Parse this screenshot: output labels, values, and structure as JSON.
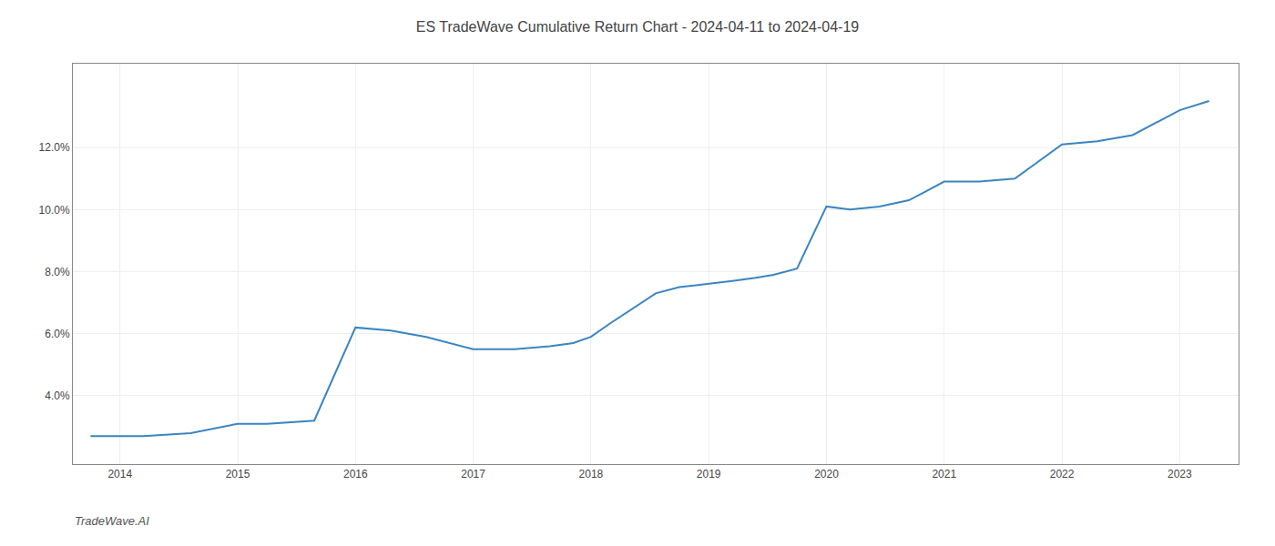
{
  "chart_data": {
    "type": "line",
    "title": "ES TradeWave Cumulative Return Chart - 2024-04-11 to 2024-04-19",
    "annotations": [
      "TradeWave.AI"
    ],
    "x": [
      2013.75,
      2014.2,
      2014.6,
      2015.0,
      2015.25,
      2015.65,
      2016.0,
      2016.3,
      2016.6,
      2017.0,
      2017.35,
      2017.65,
      2017.85,
      2018.0,
      2018.15,
      2018.35,
      2018.55,
      2018.75,
      2019.0,
      2019.2,
      2019.4,
      2019.55,
      2019.75,
      2020.0,
      2020.2,
      2020.45,
      2020.7,
      2021.0,
      2021.3,
      2021.6,
      2022.0,
      2022.3,
      2022.6,
      2023.0,
      2023.25
    ],
    "values": [
      0.027,
      0.027,
      0.028,
      0.031,
      0.031,
      0.032,
      0.062,
      0.061,
      0.059,
      0.055,
      0.055,
      0.056,
      0.057,
      0.059,
      0.063,
      0.068,
      0.073,
      0.075,
      0.076,
      0.077,
      0.078,
      0.079,
      0.081,
      0.101,
      0.1,
      0.101,
      0.103,
      0.109,
      0.109,
      0.11,
      0.121,
      0.122,
      0.124,
      0.132,
      0.135
    ],
    "color": "#3a85c0",
    "xlim": [
      2013.6,
      2023.5
    ],
    "ylim": [
      0.018,
      0.147
    ],
    "xticks": [
      2014,
      2015,
      2016,
      2017,
      2018,
      2019,
      2020,
      2021,
      2022,
      2023
    ],
    "yticks": [
      {
        "value": 0.04,
        "label": "4.0%"
      },
      {
        "value": 0.06,
        "label": "6.0%"
      },
      {
        "value": 0.08,
        "label": "8.0%"
      },
      {
        "value": 0.1,
        "label": "10.0%"
      },
      {
        "value": 0.12,
        "label": "12.0%"
      }
    ],
    "grid": true
  }
}
